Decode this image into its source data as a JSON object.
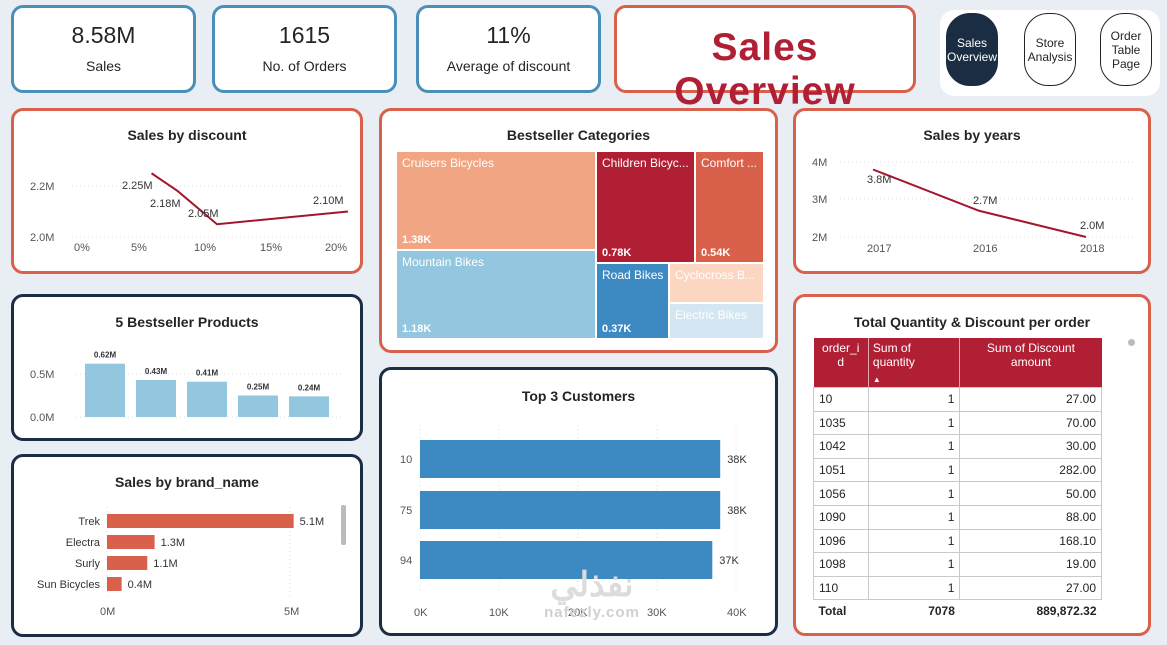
{
  "kpis": [
    {
      "value": "8.58M",
      "label": "Sales"
    },
    {
      "value": "1615",
      "label": "No. of Orders"
    },
    {
      "value": "11%",
      "label": "Average of discount"
    }
  ],
  "page_title": "Sales Overview",
  "nav": [
    {
      "label": "Sales Overview",
      "active": true
    },
    {
      "label": "Store Analysis",
      "active": false
    },
    {
      "label": "Order Table Page",
      "active": false
    }
  ],
  "sales_by_discount": {
    "title": "Sales by discount",
    "chart_data": {
      "type": "line",
      "x": [
        "5%",
        "7%",
        "10%",
        "20%"
      ],
      "x_ticks": [
        "0%",
        "5%",
        "10%",
        "15%",
        "20%"
      ],
      "y_ticks": [
        "2.2M",
        "2.0M"
      ],
      "series": [
        {
          "values": [
            2.25,
            2.18,
            2.05,
            2.1
          ],
          "labels": [
            "2.25M",
            "2.18M",
            "2.05M",
            "2.10M"
          ]
        }
      ],
      "color": "#a2172c"
    }
  },
  "bestseller_categories": {
    "title": "Bestseller Categories",
    "chart_data": {
      "type": "treemap",
      "items": [
        {
          "name": "Cruisers Bicycles",
          "value": "1.38K",
          "color": "#f2a583"
        },
        {
          "name": "Mountain Bikes",
          "value": "1.18K",
          "color": "#93c7e0"
        },
        {
          "name": "Children Bicyc...",
          "value": "0.78K",
          "color": "#b11f35"
        },
        {
          "name": "Comfort ...",
          "value": "0.54K",
          "color": "#d9614c"
        },
        {
          "name": "Road Bikes",
          "value": "0.37K",
          "color": "#3d89c2"
        },
        {
          "name": "Cyclocross B...",
          "value": "",
          "color": "#fdd6c2"
        },
        {
          "name": "Electric Bikes",
          "value": "",
          "color": "#d3e6f2"
        }
      ]
    }
  },
  "sales_by_years": {
    "title": "Sales by years",
    "chart_data": {
      "type": "line",
      "categories": [
        "2017",
        "2016",
        "2018"
      ],
      "values": [
        3.8,
        2.7,
        2.0
      ],
      "labels": [
        "3.8M",
        "2.7M",
        "2.0M"
      ],
      "y_ticks": [
        "4M",
        "3M",
        "2M"
      ],
      "color": "#a2172c"
    }
  },
  "bestseller_products": {
    "title": "5 Bestseller Products",
    "chart_data": {
      "type": "bar",
      "values": [
        0.62,
        0.43,
        0.41,
        0.25,
        0.24
      ],
      "labels": [
        "0.62M",
        "0.43M",
        "0.41M",
        "0.25M",
        "0.24M"
      ],
      "y_ticks": [
        "0.5M",
        "0.0M"
      ],
      "color": "#93c7e0"
    }
  },
  "top_customers": {
    "title": "Top 3 Customers",
    "chart_data": {
      "type": "bar",
      "categories": [
        "10",
        "75",
        "94"
      ],
      "values": [
        38,
        38,
        37
      ],
      "labels": [
        "38K",
        "38K",
        "37K"
      ],
      "x_ticks": [
        "0K",
        "10K",
        "20K",
        "30K",
        "40K"
      ],
      "color": "#3d89c2"
    }
  },
  "sales_by_brand": {
    "title": "Sales by brand_name",
    "chart_data": {
      "type": "bar",
      "categories": [
        "Trek",
        "Electra",
        "Surly",
        "Sun Bicycles"
      ],
      "values": [
        5.1,
        1.3,
        1.1,
        0.4
      ],
      "labels": [
        "5.1M",
        "1.3M",
        "1.1M",
        "0.4M"
      ],
      "x_ticks": [
        "0M",
        "5M"
      ],
      "color": "#d9614c"
    }
  },
  "order_table": {
    "title": "Total Quantity & Discount per order",
    "columns": [
      "order_id",
      "Sum of quantity",
      "Sum of Discount amount"
    ],
    "rows": [
      [
        "10",
        "1",
        "27.00"
      ],
      [
        "1035",
        "1",
        "70.00"
      ],
      [
        "1042",
        "1",
        "30.00"
      ],
      [
        "1051",
        "1",
        "282.00"
      ],
      [
        "1056",
        "1",
        "50.00"
      ],
      [
        "1090",
        "1",
        "88.00"
      ],
      [
        "1096",
        "1",
        "168.10"
      ],
      [
        "1098",
        "1",
        "19.00"
      ],
      [
        "110",
        "1",
        "27.00"
      ]
    ],
    "total": [
      "Total",
      "7078",
      "889,872.32"
    ]
  },
  "watermark": {
    "arabic": "نفذلي",
    "latin": "nafezly.com"
  }
}
